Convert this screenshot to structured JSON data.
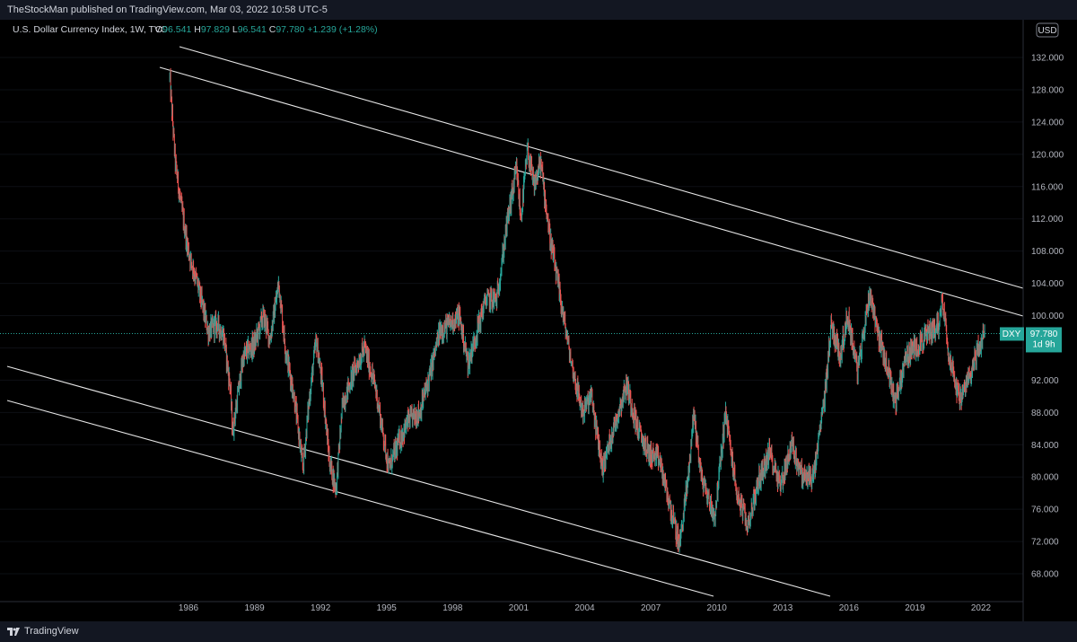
{
  "header": {
    "published": "TheStockMan published on TradingView.com, Mar 03, 2022 10:58 UTC-5"
  },
  "legend": {
    "symbol": "U.S. Dollar Currency Index, 1W, TVC",
    "o_label": "O",
    "o_value": "96.541",
    "h_label": "H",
    "h_value": "97.829",
    "l_label": "L",
    "l_value": "96.541",
    "c_label": "C",
    "c_value": "97.780",
    "change": "+1.239 (+1.28%)"
  },
  "currency_button": "USD",
  "price_tag": {
    "ticker": "DXY",
    "price": "97.780",
    "countdown": "1d 9h"
  },
  "footer": {
    "brand": "TradingView"
  },
  "colors": {
    "up": "#26a69a",
    "down": "#ef5350",
    "tag": "#26a69a",
    "bg": "#000000",
    "panel": "#131722"
  },
  "chart_data": {
    "type": "candlestick",
    "ylim": [
      65,
      136
    ],
    "y_ticks": [
      "132.000",
      "128.000",
      "124.000",
      "120.000",
      "116.000",
      "112.000",
      "108.000",
      "104.000",
      "100.000",
      "96.000",
      "92.000",
      "88.000",
      "84.000",
      "80.000",
      "76.000",
      "72.000",
      "68.000"
    ],
    "x_ticks": [
      "1986",
      "1989",
      "1992",
      "1995",
      "1998",
      "2001",
      "2004",
      "2007",
      "2010",
      "2013",
      "2016",
      "2019",
      "2022"
    ],
    "last_price": 97.78,
    "series": [
      {
        "values_by_date": [
          [
            "1985.15",
            129.5
          ],
          [
            "1985.40",
            119.0
          ],
          [
            "1985.70",
            113.0
          ],
          [
            "1986.00",
            108.0
          ],
          [
            "1986.40",
            104.0
          ],
          [
            "1986.90",
            98.0
          ],
          [
            "1987.30",
            99.0
          ],
          [
            "1987.60",
            97.5
          ],
          [
            "1987.90",
            91.0
          ],
          [
            "1988.00",
            85.5
          ],
          [
            "1988.50",
            95.0
          ],
          [
            "1989.00",
            96.5
          ],
          [
            "1989.40",
            100.0
          ],
          [
            "1989.70",
            97.0
          ],
          [
            "1990.10",
            104.0
          ],
          [
            "1990.40",
            96.0
          ],
          [
            "1990.80",
            90.0
          ],
          [
            "1991.20",
            81.0
          ],
          [
            "1991.50",
            90.0
          ],
          [
            "1991.80",
            97.0
          ],
          [
            "1992.10",
            91.0
          ],
          [
            "1992.40",
            82.0
          ],
          [
            "1992.70",
            78.5
          ],
          [
            "1993.00",
            89.0
          ],
          [
            "1993.50",
            93.0
          ],
          [
            "1994.00",
            96.0
          ],
          [
            "1994.50",
            91.0
          ],
          [
            "1995.10",
            81.0
          ],
          [
            "1995.50",
            84.0
          ],
          [
            "1996.00",
            87.0
          ],
          [
            "1996.50",
            88.0
          ],
          [
            "1997.00",
            93.0
          ],
          [
            "1997.40",
            98.0
          ],
          [
            "1997.90",
            99.0
          ],
          [
            "1998.30",
            100.0
          ],
          [
            "1998.70",
            94.0
          ],
          [
            "1999.00",
            97.0
          ],
          [
            "1999.50",
            102.0
          ],
          [
            "2000.00",
            102.0
          ],
          [
            "2000.50",
            112.0
          ],
          [
            "2000.90",
            118.0
          ],
          [
            "2001.10",
            112.0
          ],
          [
            "2001.40",
            120.5
          ],
          [
            "2001.70",
            116.0
          ],
          [
            "2002.00",
            119.0
          ],
          [
            "2002.40",
            110.0
          ],
          [
            "2002.90",
            102.0
          ],
          [
            "2003.40",
            94.0
          ],
          [
            "2003.90",
            88.0
          ],
          [
            "2004.30",
            90.0
          ],
          [
            "2004.80",
            81.0
          ],
          [
            "2005.30",
            86.0
          ],
          [
            "2005.90",
            91.5
          ],
          [
            "2006.40",
            86.0
          ],
          [
            "2006.90",
            83.0
          ],
          [
            "2007.40",
            82.0
          ],
          [
            "2007.90",
            76.0
          ],
          [
            "2008.30",
            71.5
          ],
          [
            "2008.70",
            80.0
          ],
          [
            "2008.95",
            88.0
          ],
          [
            "2009.30",
            80.0
          ],
          [
            "2009.90",
            75.0
          ],
          [
            "2010.40",
            88.0
          ],
          [
            "2010.90",
            78.0
          ],
          [
            "2011.40",
            74.0
          ],
          [
            "2011.90",
            79.5
          ],
          [
            "2012.40",
            83.0
          ],
          [
            "2012.90",
            79.0
          ],
          [
            "2013.40",
            84.0
          ],
          [
            "2013.90",
            80.0
          ],
          [
            "2014.40",
            80.0
          ],
          [
            "2014.90",
            90.0
          ],
          [
            "2015.20",
            99.0
          ],
          [
            "2015.60",
            95.0
          ],
          [
            "2015.95",
            100.0
          ],
          [
            "2016.40",
            93.0
          ],
          [
            "2016.95",
            103.0
          ],
          [
            "2017.40",
            97.0
          ],
          [
            "2017.90",
            92.0
          ],
          [
            "2018.10",
            89.0
          ],
          [
            "2018.60",
            95.0
          ],
          [
            "2019.20",
            96.5
          ],
          [
            "2019.70",
            98.0
          ],
          [
            "2020.10",
            99.0
          ],
          [
            "2020.25",
            102.5
          ],
          [
            "2020.50",
            96.0
          ],
          [
            "2020.90",
            91.0
          ],
          [
            "2021.10",
            89.5
          ],
          [
            "2021.40",
            92.0
          ],
          [
            "2021.90",
            96.0
          ],
          [
            "2022.17",
            97.78
          ]
        ]
      }
    ]
  }
}
